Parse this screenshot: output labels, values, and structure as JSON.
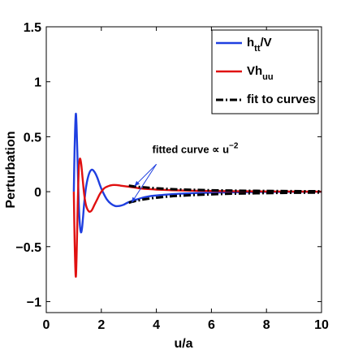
{
  "chart_data": {
    "type": "line",
    "title": "",
    "xlabel": "u/a",
    "ylabel": "Perturbation",
    "xlim": [
      0,
      10
    ],
    "ylim": [
      -1.1,
      1.5
    ],
    "xticks": [
      0,
      2,
      4,
      6,
      8,
      10
    ],
    "yticks": [
      -1,
      -0.5,
      0,
      0.5,
      1,
      1.5
    ],
    "xtick_labels": [
      "0",
      "2",
      "4",
      "6",
      "8",
      "10"
    ],
    "ytick_labels": [
      "−1",
      "−0.5",
      "0",
      "0.5",
      "1",
      "1.5"
    ],
    "grid": false,
    "legend_position": "top-right",
    "series": [
      {
        "name": "h_tt/V",
        "color": "#1f3fe0",
        "style": "solid",
        "x": [
          1.0,
          1.03,
          1.07,
          1.1,
          1.14,
          1.18,
          1.22,
          1.26,
          1.3,
          1.34,
          1.38,
          1.45,
          1.55,
          1.65,
          1.75,
          1.85,
          1.95,
          2.05,
          2.2,
          2.35,
          2.5,
          2.65,
          2.8,
          2.95,
          3.1,
          3.3,
          3.5,
          3.8,
          4.2,
          4.6,
          5.0,
          5.5,
          6.0,
          6.5,
          7.0,
          8.0,
          9.0,
          10.0
        ],
        "y": [
          0.0,
          0.4,
          0.7,
          0.6,
          0.25,
          -0.1,
          -0.3,
          -0.37,
          -0.33,
          -0.22,
          -0.1,
          0.05,
          0.16,
          0.2,
          0.18,
          0.13,
          0.06,
          0.0,
          -0.07,
          -0.11,
          -0.13,
          -0.13,
          -0.12,
          -0.1,
          -0.085,
          -0.07,
          -0.055,
          -0.04,
          -0.03,
          -0.022,
          -0.017,
          -0.012,
          -0.009,
          -0.007,
          -0.005,
          -0.003,
          -0.002,
          -0.001
        ]
      },
      {
        "name": "Vh_uu",
        "color": "#e01010",
        "style": "solid",
        "x": [
          1.0,
          1.03,
          1.07,
          1.1,
          1.14,
          1.18,
          1.22,
          1.27,
          1.32,
          1.38,
          1.45,
          1.55,
          1.65,
          1.75,
          1.85,
          1.95,
          2.1,
          2.25,
          2.4,
          2.55,
          2.7,
          2.85,
          3.0,
          3.2,
          3.4,
          3.7,
          4.0,
          4.5,
          5.0,
          5.5,
          6.0,
          7.0,
          8.0,
          9.0,
          10.0
        ],
        "y": [
          0.0,
          -0.45,
          -0.77,
          -0.6,
          -0.15,
          0.2,
          0.3,
          0.25,
          0.12,
          -0.03,
          -0.13,
          -0.18,
          -0.17,
          -0.12,
          -0.07,
          -0.02,
          0.03,
          0.05,
          0.06,
          0.06,
          0.055,
          0.05,
          0.045,
          0.038,
          0.03,
          0.024,
          0.019,
          0.014,
          0.01,
          0.008,
          0.006,
          0.004,
          0.002,
          0.001,
          0.0
        ]
      },
      {
        "name": "fit to curves",
        "color": "#000000",
        "style": "dashdot",
        "x": [
          3.0,
          3.3,
          3.6,
          4.0,
          4.5,
          5.0,
          5.5,
          6.0,
          6.5,
          7.0,
          8.0,
          9.0,
          10.0
        ],
        "y": [
          0.055,
          0.045,
          0.038,
          0.031,
          0.024,
          0.019,
          0.016,
          0.013,
          0.011,
          0.009,
          0.007,
          0.005,
          0.004
        ]
      },
      {
        "name": "",
        "color": "#000000",
        "style": "dashdot",
        "x": [
          3.0,
          3.3,
          3.6,
          4.0,
          4.5,
          5.0,
          5.5,
          6.0,
          6.5,
          7.0,
          8.0,
          9.0,
          10.0
        ],
        "y": [
          -0.1,
          -0.082,
          -0.068,
          -0.055,
          -0.043,
          -0.035,
          -0.029,
          -0.024,
          -0.02,
          -0.017,
          -0.013,
          -0.01,
          -0.008
        ]
      }
    ],
    "legend": [
      {
        "series": 0,
        "main": "h",
        "sub": "tt",
        "tail": "/V"
      },
      {
        "series": 1,
        "main": "Vh",
        "sub": "uu",
        "tail": ""
      },
      {
        "series": 2,
        "main": "fit to curves",
        "sub": "",
        "tail": ""
      }
    ],
    "annotation": {
      "text": "fitted curve ∝ u",
      "superscript": "−2",
      "text_anchor": [
        3.85,
        0.35
      ],
      "arrow_from": [
        4.0,
        0.25
      ],
      "arrow_targets": [
        [
          3.2,
          0.05
        ],
        [
          3.1,
          -0.1
        ]
      ]
    }
  }
}
